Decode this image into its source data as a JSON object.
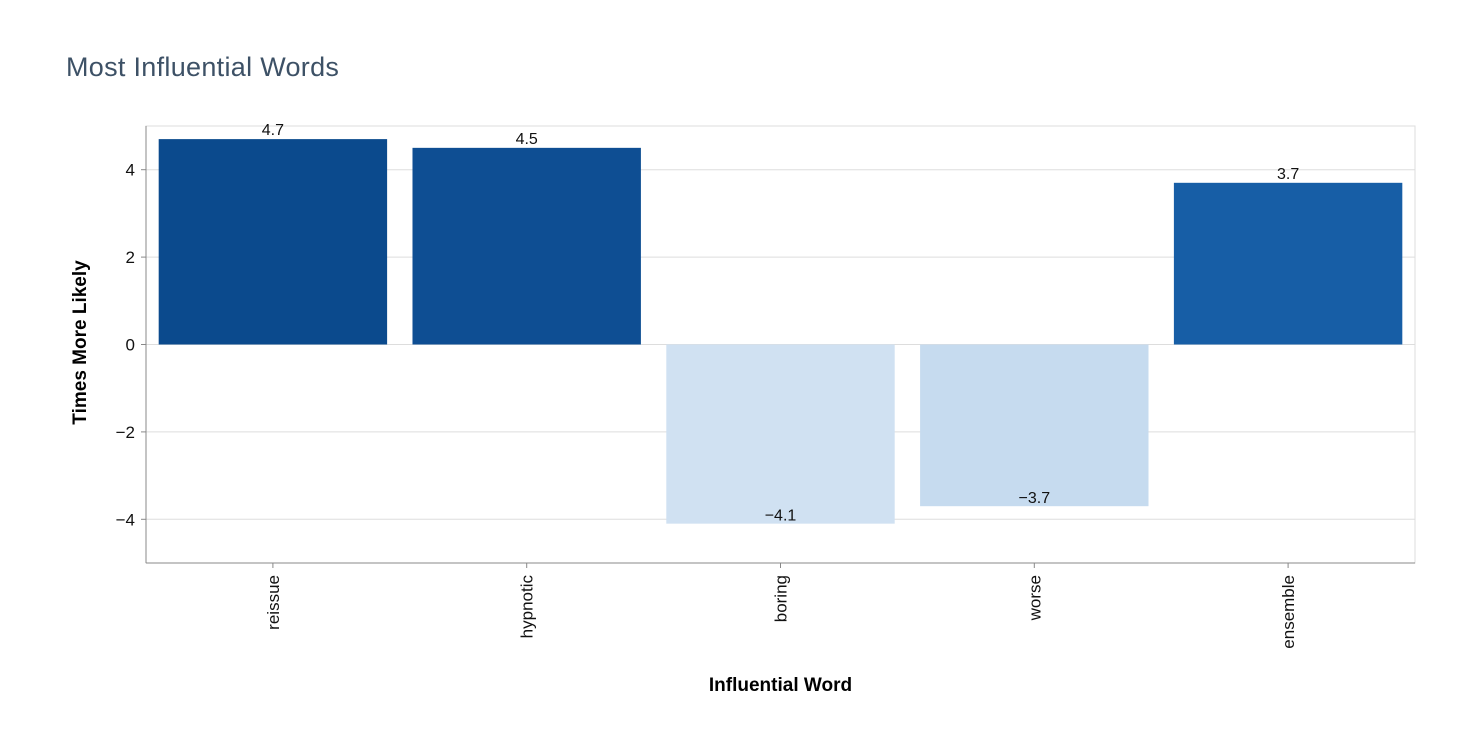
{
  "chart_data": {
    "type": "bar",
    "title": "Most Influential Words",
    "xlabel": "Influential Word",
    "ylabel": "Times More Likely",
    "categories": [
      "reissue",
      "hypnotic",
      "boring",
      "worse",
      "ensemble"
    ],
    "values": [
      4.7,
      4.5,
      -4.1,
      -3.7,
      3.7
    ],
    "data_labels": [
      "4.7",
      "4.5",
      "−4.1",
      "−3.7",
      "3.7"
    ],
    "colors": [
      "#0b4a8d",
      "#0e4e93",
      "#d0e1f2",
      "#c6dbef",
      "#175ea6"
    ],
    "ylim": [
      -5,
      5
    ],
    "yticks": [
      -4,
      -2,
      0,
      2,
      4
    ],
    "ytick_labels": [
      "−4",
      "−2",
      "0",
      "2",
      "4"
    ],
    "grid": true,
    "legend": "none"
  }
}
